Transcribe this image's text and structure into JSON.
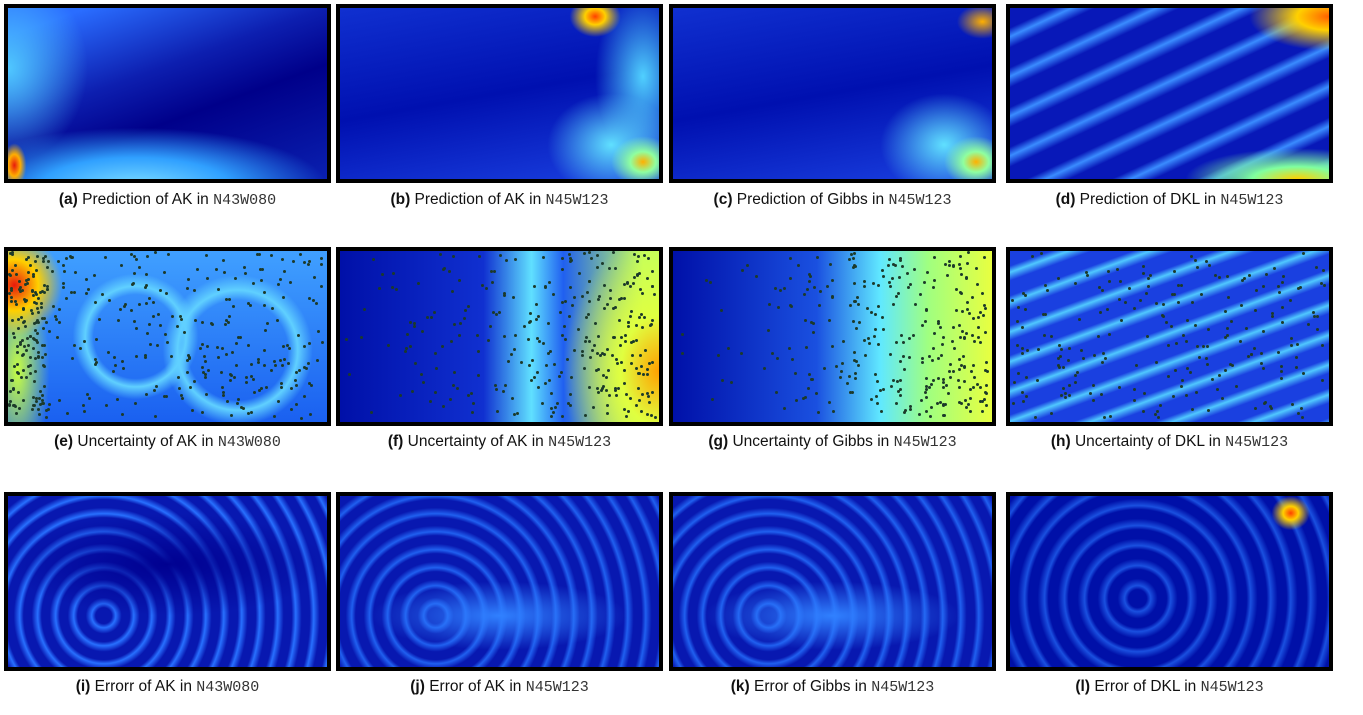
{
  "panels": [
    {
      "label": "(a)",
      "text": "Prediction of AK in",
      "code": "N43W080"
    },
    {
      "label": "(b)",
      "text": "Prediction of AK in",
      "code": "N45W123"
    },
    {
      "label": "(c)",
      "text": "Prediction of Gibbs in",
      "code": "N45W123"
    },
    {
      "label": "(d)",
      "text": "Prediction of DKL in",
      "code": "N45W123"
    },
    {
      "label": "(e)",
      "text": "Uncertainty of AK in",
      "code": "N43W080"
    },
    {
      "label": "(f)",
      "text": "Uncertainty of AK in",
      "code": "N45W123"
    },
    {
      "label": "(g)",
      "text": "Uncertainty of Gibbs in",
      "code": "N45W123"
    },
    {
      "label": "(h)",
      "text": "Uncertainty of DKL in",
      "code": "N45W123"
    },
    {
      "label": "(i)",
      "text": "Errorr of AK in",
      "code": "N43W080"
    },
    {
      "label": "(j)",
      "text": "Error of AK in",
      "code": "N45W123"
    },
    {
      "label": "(k)",
      "text": "Error of Gibbs in",
      "code": "N45W123"
    },
    {
      "label": "(l)",
      "text": "Error of DKL in",
      "code": "N45W123"
    }
  ]
}
